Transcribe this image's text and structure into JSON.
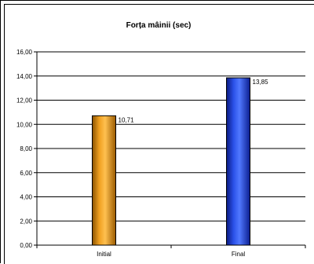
{
  "chart_data": {
    "type": "bar",
    "title": "Forța mâinii (sec)",
    "xlabel": "",
    "ylabel": "",
    "categories": [
      "Initial",
      "Final"
    ],
    "values": [
      10.71,
      13.85
    ],
    "value_labels": [
      "10,71",
      "13,85"
    ],
    "ylim": [
      0,
      16
    ],
    "yticks": [
      0,
      2,
      4,
      6,
      8,
      10,
      12,
      14,
      16
    ],
    "ytick_labels": [
      "0,00",
      "2,00",
      "4,00",
      "6,00",
      "8,00",
      "10,00",
      "12,00",
      "14,00",
      "16,00"
    ],
    "grid": true,
    "legend": "none",
    "bar_colors": [
      "#f09a10",
      "#2346d8"
    ]
  }
}
